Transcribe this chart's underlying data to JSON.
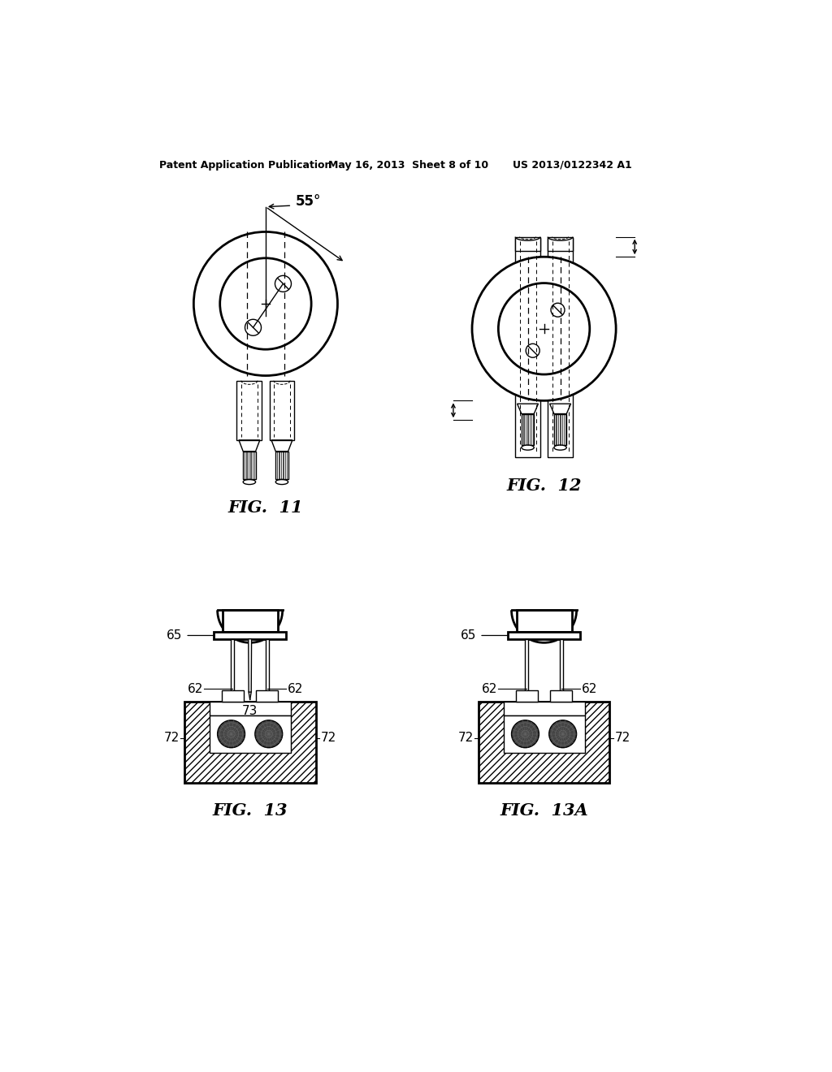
{
  "background_color": "#ffffff",
  "header_left": "Patent Application Publication",
  "header_mid": "May 16, 2013  Sheet 8 of 10",
  "header_right": "US 2013/0122342 A1",
  "fig11_label": "FIG.  11",
  "fig12_label": "FIG.  12",
  "fig13_label": "FIG.  13",
  "fig13a_label": "FIG.  13A",
  "angle_label": "55°",
  "label_62": "62",
  "label_65": "65",
  "label_72": "72",
  "label_73": "73"
}
